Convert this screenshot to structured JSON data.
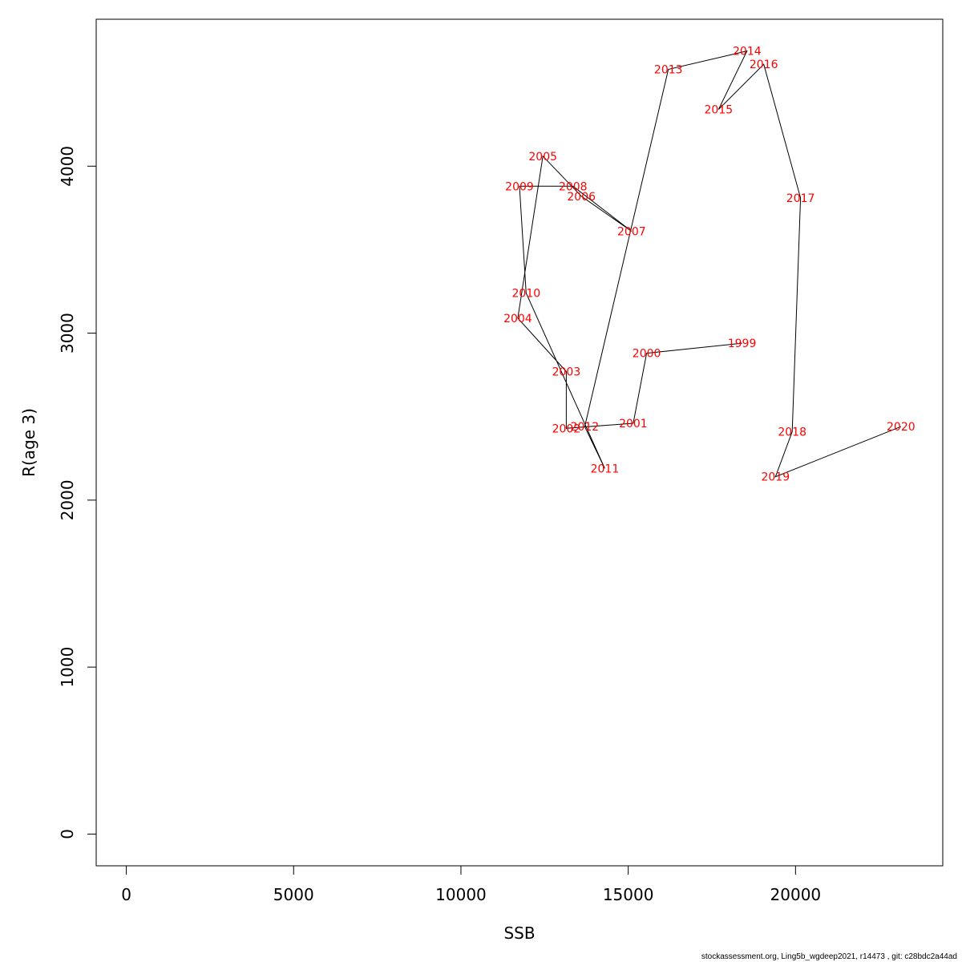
{
  "chart_data": {
    "type": "line",
    "xlabel": "SSB",
    "ylabel": "R(age 3)",
    "xlim": [
      -900,
      24400
    ],
    "ylim": [
      -190,
      4880
    ],
    "x_ticks": [
      0,
      5000,
      10000,
      15000,
      20000
    ],
    "y_ticks": [
      0,
      1000,
      2000,
      3000,
      4000
    ],
    "x_tick_labels": [
      "0",
      "5000",
      "10000",
      "15000",
      "20000"
    ],
    "y_tick_labels": [
      "0",
      "1000",
      "2000",
      "3000",
      "4000"
    ],
    "line_color": "#000000",
    "label_color": "#ff0000",
    "grid": false,
    "points": [
      {
        "year": "1999",
        "x": 18400,
        "y": 2940
      },
      {
        "year": "2000",
        "x": 15550,
        "y": 2880
      },
      {
        "year": "2001",
        "x": 15150,
        "y": 2460
      },
      {
        "year": "2002",
        "x": 13150,
        "y": 2430
      },
      {
        "year": "2003",
        "x": 13150,
        "y": 2770
      },
      {
        "year": "2004",
        "x": 11700,
        "y": 3090
      },
      {
        "year": "2005",
        "x": 12450,
        "y": 4060
      },
      {
        "year": "2006",
        "x": 13600,
        "y": 3820
      },
      {
        "year": "2007",
        "x": 15100,
        "y": 3610
      },
      {
        "year": "2008",
        "x": 13350,
        "y": 3880
      },
      {
        "year": "2009",
        "x": 11750,
        "y": 3880
      },
      {
        "year": "2010",
        "x": 11950,
        "y": 3240
      },
      {
        "year": "2011",
        "x": 14300,
        "y": 2190
      },
      {
        "year": "2012",
        "x": 13700,
        "y": 2440
      },
      {
        "year": "2013",
        "x": 16200,
        "y": 4580
      },
      {
        "year": "2014",
        "x": 18550,
        "y": 4690
      },
      {
        "year": "2015",
        "x": 17700,
        "y": 4340
      },
      {
        "year": "2016",
        "x": 19050,
        "y": 4610
      },
      {
        "year": "2017",
        "x": 20150,
        "y": 3810
      },
      {
        "year": "2018",
        "x": 19900,
        "y": 2410
      },
      {
        "year": "2019",
        "x": 19400,
        "y": 2140
      },
      {
        "year": "2020",
        "x": 23150,
        "y": 2440
      }
    ]
  },
  "footer": {
    "text": "stockassessment.org, Ling5b_wgdeep2021, r14473 , git: c28bdc2a44ad"
  }
}
